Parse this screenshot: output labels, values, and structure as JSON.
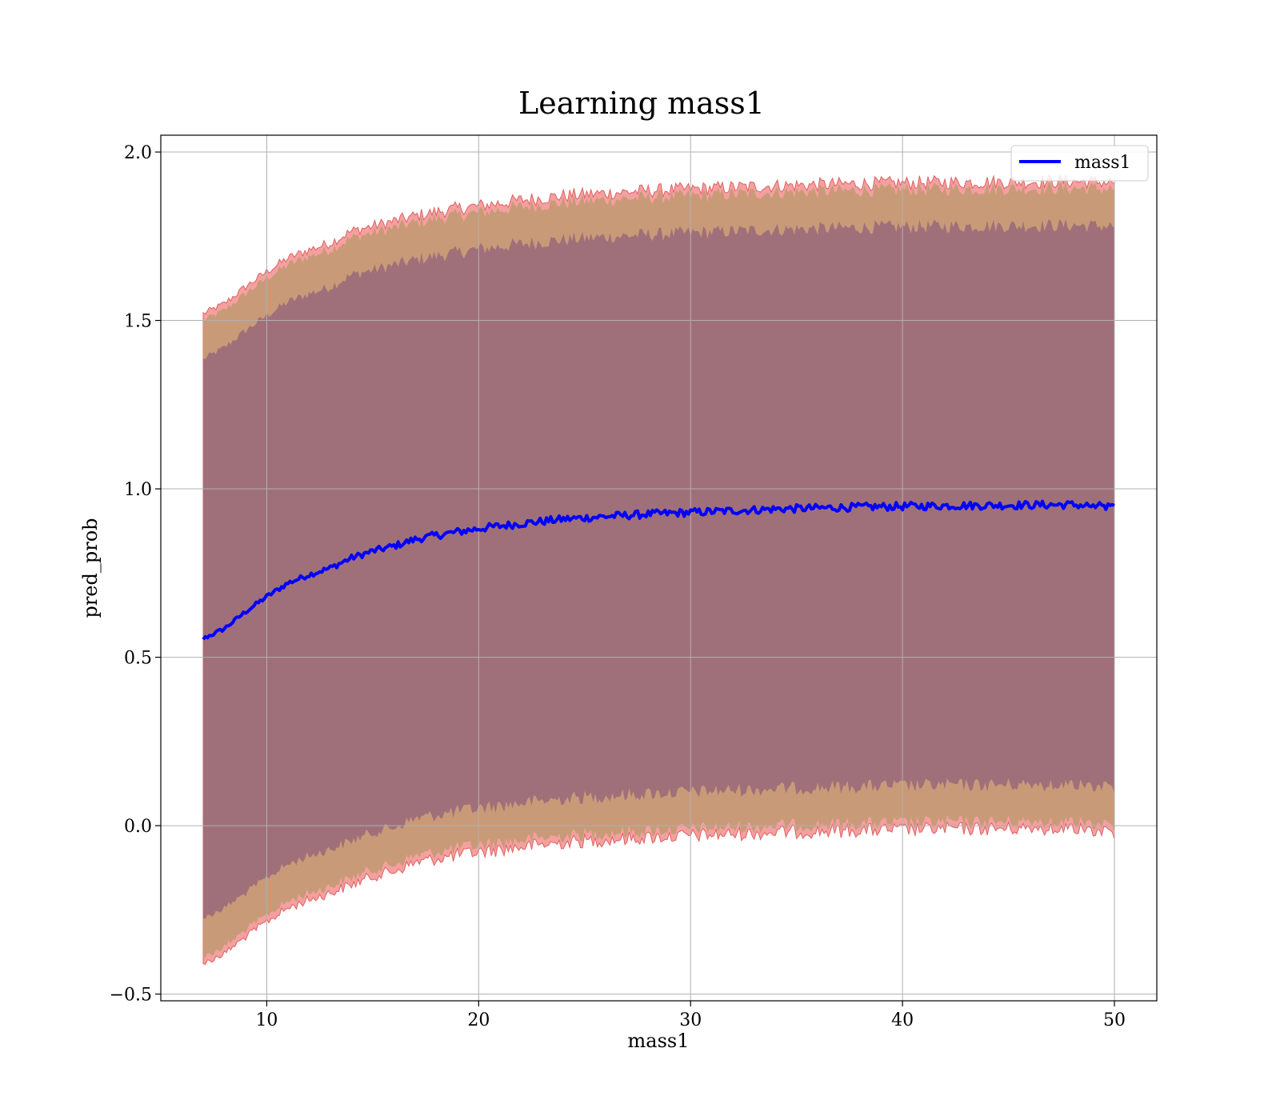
{
  "chart_data": {
    "type": "line",
    "title": "Learning mass1",
    "xlabel": "mass1",
    "ylabel": "pred_prob",
    "xlim": [
      5,
      52
    ],
    "ylim": [
      -0.52,
      2.05
    ],
    "xticks": [
      10,
      20,
      30,
      40,
      50
    ],
    "xtick_labels": [
      "10",
      "20",
      "30",
      "40",
      "50"
    ],
    "yticks": [
      -0.5,
      0.0,
      0.5,
      1.0,
      1.5,
      2.0
    ],
    "ytick_labels": [
      "−0.5",
      "0.0",
      "0.5",
      "1.0",
      "1.5",
      "2.0"
    ],
    "grid": true,
    "legend": {
      "position": "top-right",
      "entries": [
        "mass1"
      ]
    },
    "colors": {
      "line": "#0000ff",
      "band_outer": "#f08080",
      "band_middle": "#c99a78",
      "band_inner": "#a0707a",
      "grid": "#b0b0b0"
    },
    "series": [
      {
        "name": "mass1",
        "x": [
          7,
          8,
          9,
          10,
          11,
          12,
          13,
          14,
          15,
          16,
          17,
          18,
          19,
          20,
          22,
          24,
          26,
          28,
          30,
          32,
          34,
          36,
          38,
          40,
          42,
          44,
          46,
          48,
          50
        ],
        "y": [
          0.555,
          0.585,
          0.635,
          0.68,
          0.72,
          0.745,
          0.765,
          0.795,
          0.815,
          0.83,
          0.85,
          0.862,
          0.872,
          0.882,
          0.897,
          0.91,
          0.918,
          0.925,
          0.93,
          0.935,
          0.94,
          0.943,
          0.946,
          0.948,
          0.95,
          0.951,
          0.952,
          0.953,
          0.945
        ]
      }
    ],
    "bands": [
      {
        "role": "outer",
        "x": [
          7,
          8,
          9,
          10,
          11,
          12,
          13,
          14,
          15,
          16,
          17,
          18,
          19,
          20,
          22,
          24,
          26,
          28,
          30,
          32,
          34,
          36,
          38,
          40,
          42,
          44,
          46,
          48,
          50
        ],
        "upper": [
          1.52,
          1.55,
          1.6,
          1.645,
          1.685,
          1.71,
          1.73,
          1.765,
          1.78,
          1.795,
          1.81,
          1.822,
          1.832,
          1.84,
          1.857,
          1.87,
          1.878,
          1.885,
          1.89,
          1.895,
          1.9,
          1.903,
          1.906,
          1.908,
          1.91,
          1.911,
          1.912,
          1.913,
          1.91
        ],
        "lower": [
          -0.41,
          -0.38,
          -0.33,
          -0.285,
          -0.245,
          -0.22,
          -0.2,
          -0.175,
          -0.15,
          -0.135,
          -0.11,
          -0.098,
          -0.088,
          -0.078,
          -0.063,
          -0.05,
          -0.042,
          -0.035,
          -0.03,
          -0.025,
          -0.02,
          -0.017,
          -0.014,
          -0.012,
          -0.01,
          -0.009,
          -0.008,
          -0.007,
          -0.02
        ]
      },
      {
        "role": "middle",
        "x": [
          7,
          8,
          9,
          10,
          11,
          12,
          13,
          14,
          15,
          16,
          17,
          18,
          19,
          20,
          22,
          24,
          26,
          28,
          30,
          32,
          34,
          36,
          38,
          40,
          42,
          44,
          46,
          48,
          50
        ],
        "upper": [
          1.5,
          1.53,
          1.58,
          1.625,
          1.665,
          1.69,
          1.71,
          1.745,
          1.76,
          1.775,
          1.79,
          1.802,
          1.812,
          1.82,
          1.837,
          1.85,
          1.858,
          1.865,
          1.87,
          1.875,
          1.88,
          1.883,
          1.886,
          1.888,
          1.89,
          1.891,
          1.892,
          1.893,
          1.89
        ],
        "lower": [
          -0.39,
          -0.36,
          -0.31,
          -0.265,
          -0.225,
          -0.2,
          -0.18,
          -0.155,
          -0.13,
          -0.115,
          -0.09,
          -0.078,
          -0.068,
          -0.058,
          -0.043,
          -0.03,
          -0.022,
          -0.015,
          -0.01,
          -0.005,
          0.0,
          0.003,
          0.006,
          0.008,
          0.01,
          0.011,
          0.012,
          0.013,
          0.0
        ]
      },
      {
        "role": "inner",
        "x": [
          7,
          8,
          9,
          10,
          11,
          12,
          13,
          14,
          15,
          16,
          17,
          18,
          19,
          20,
          22,
          24,
          26,
          28,
          30,
          32,
          34,
          36,
          38,
          40,
          42,
          44,
          46,
          48,
          50
        ],
        "upper": [
          1.385,
          1.42,
          1.47,
          1.515,
          1.555,
          1.58,
          1.6,
          1.635,
          1.65,
          1.665,
          1.68,
          1.692,
          1.702,
          1.712,
          1.727,
          1.74,
          1.748,
          1.755,
          1.76,
          1.765,
          1.77,
          1.773,
          1.776,
          1.778,
          1.78,
          1.781,
          1.782,
          1.783,
          1.78
        ],
        "lower": [
          -0.275,
          -0.245,
          -0.2,
          -0.155,
          -0.115,
          -0.09,
          -0.07,
          -0.045,
          -0.02,
          -0.005,
          0.02,
          0.032,
          0.042,
          0.052,
          0.067,
          0.08,
          0.088,
          0.095,
          0.1,
          0.105,
          0.11,
          0.113,
          0.116,
          0.118,
          0.12,
          0.121,
          0.122,
          0.123,
          0.115
        ]
      }
    ]
  }
}
